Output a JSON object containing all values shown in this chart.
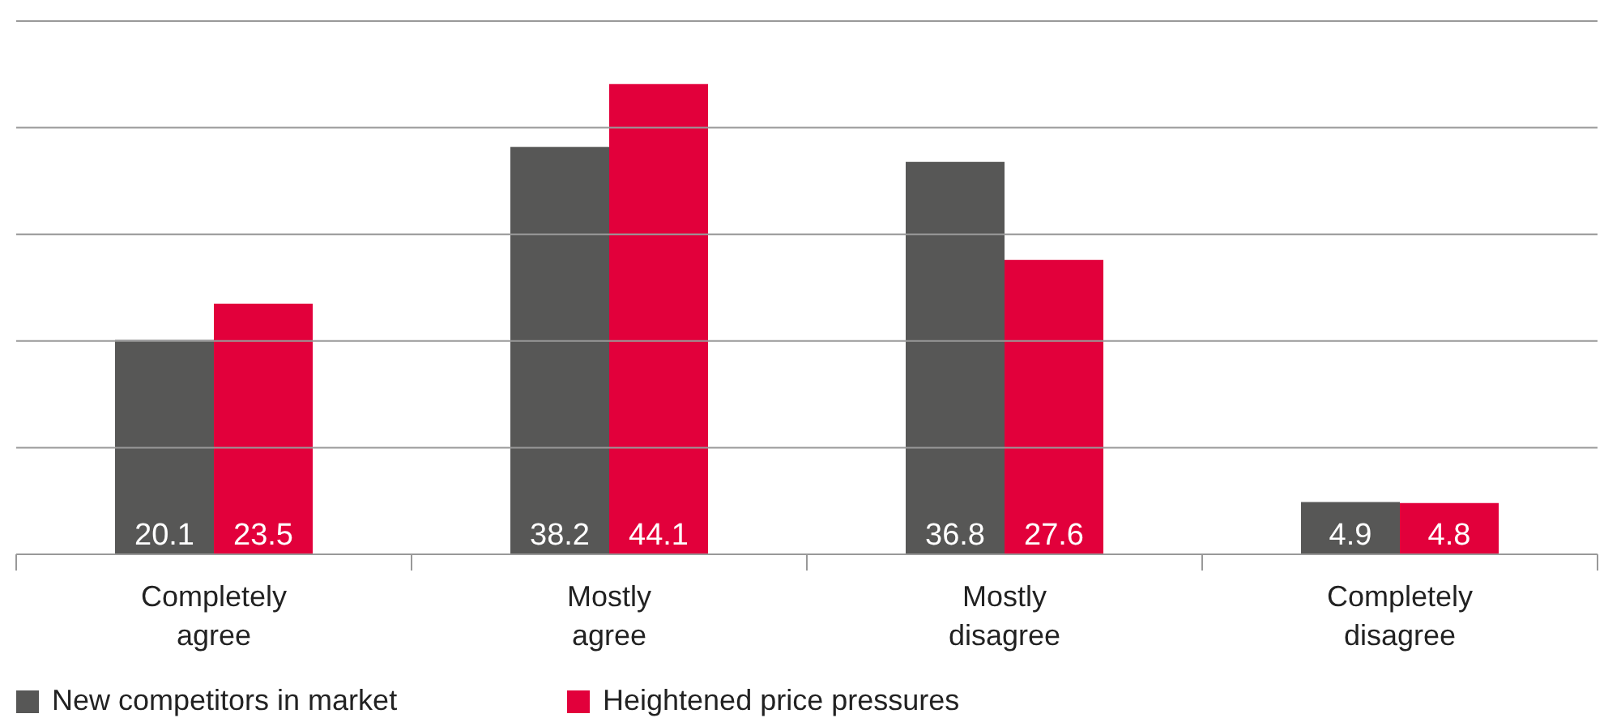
{
  "chart_data": {
    "type": "bar",
    "categories": [
      "Completely agree",
      "Mostly agree",
      "Mostly disagree",
      "Completely disagree"
    ],
    "series": [
      {
        "name": "New competitors in market",
        "color": "#575756",
        "values": [
          20.1,
          38.2,
          36.8,
          4.9
        ]
      },
      {
        "name": "Heightened price pressures",
        "color": "#e2003b",
        "values": [
          23.5,
          44.1,
          27.6,
          4.8
        ]
      }
    ],
    "ylim": [
      0,
      50
    ],
    "yticks": [
      {
        "value": 0,
        "label": null
      },
      {
        "value": 10,
        "label": null
      },
      {
        "value": 20,
        "label": null
      },
      {
        "value": 30,
        "label": null
      },
      {
        "value": 40,
        "label": null
      },
      {
        "value": 50,
        "label": null
      }
    ],
    "tick_labels": "x",
    "grid": "y",
    "data_labels": true,
    "legend": "bottom left"
  }
}
